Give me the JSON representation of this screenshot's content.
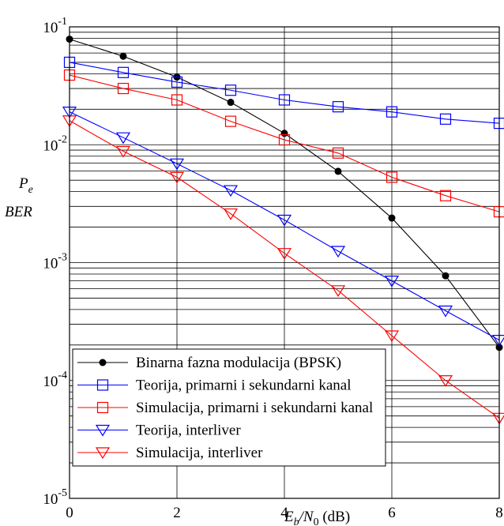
{
  "chart_data": {
    "type": "line",
    "xlabel": {
      "main": "E",
      "sub1": "b",
      "slash": "/N",
      "sub2": "0",
      "unit": " (dB)"
    },
    "ylabel": {
      "line1_main": "P",
      "line1_sub": "e",
      "line2": "BER"
    },
    "xlim": [
      0,
      8
    ],
    "ylim": [
      1e-05,
      0.1
    ],
    "yscale": "log",
    "grid": true,
    "legend_position": "bottom-left",
    "x_ticks": [
      {
        "value": 0,
        "label": "0"
      },
      {
        "value": 2,
        "label": "2"
      },
      {
        "value": 4,
        "label": "4"
      },
      {
        "value": 6,
        "label": "6"
      },
      {
        "value": 8,
        "label": "8"
      }
    ],
    "y_ticks": [
      {
        "value": 0.1,
        "base": "10",
        "exp": "-1"
      },
      {
        "value": 0.01,
        "base": "10",
        "exp": "-2"
      },
      {
        "value": 0.001,
        "base": "10",
        "exp": "-3"
      },
      {
        "value": 0.0001,
        "base": "10",
        "exp": "-4"
      },
      {
        "value": 1e-05,
        "base": "10",
        "exp": "-5"
      }
    ],
    "series": [
      {
        "name": "Binarna fazna modulacija (BPSK)",
        "color": "#000000",
        "marker": "dot",
        "x": [
          0,
          1,
          2,
          3,
          4,
          5,
          6,
          7,
          8
        ],
        "y": [
          0.0786,
          0.0563,
          0.0375,
          0.0229,
          0.0125,
          0.00595,
          0.00239,
          0.000773,
          0.000191
        ]
      },
      {
        "name": "Teorija, primarni i sekundarni kanal",
        "color": "#0000ff",
        "marker": "square",
        "x": [
          0,
          1,
          2,
          3,
          4,
          5,
          6,
          7,
          8
        ],
        "y": [
          0.05,
          0.041,
          0.034,
          0.029,
          0.024,
          0.021,
          0.019,
          0.0165,
          0.0152
        ]
      },
      {
        "name": "Simulacija, primarni i sekundarni kanal",
        "color": "#ff0000",
        "marker": "square",
        "x": [
          0,
          1,
          2,
          3,
          4,
          5,
          6,
          7,
          8
        ],
        "y": [
          0.039,
          0.03,
          0.024,
          0.0158,
          0.011,
          0.0085,
          0.0053,
          0.0037,
          0.0027
        ]
      },
      {
        "name": "Teorija, interliver",
        "color": "#0000ff",
        "marker": "triangle-down",
        "x": [
          0,
          1,
          2,
          3,
          4,
          5,
          6,
          7,
          8
        ],
        "y": [
          0.019,
          0.0115,
          0.0069,
          0.0041,
          0.0023,
          0.00125,
          0.0007,
          0.00039,
          0.00022
        ]
      },
      {
        "name": "Simulacija, interliver",
        "color": "#ff0000",
        "marker": "triangle-down",
        "x": [
          0,
          1,
          2,
          3,
          4,
          5,
          6,
          7,
          8
        ],
        "y": [
          0.016,
          0.0088,
          0.0053,
          0.0026,
          0.0012,
          0.00058,
          0.00024,
          0.0001,
          4.8e-05
        ]
      }
    ]
  }
}
